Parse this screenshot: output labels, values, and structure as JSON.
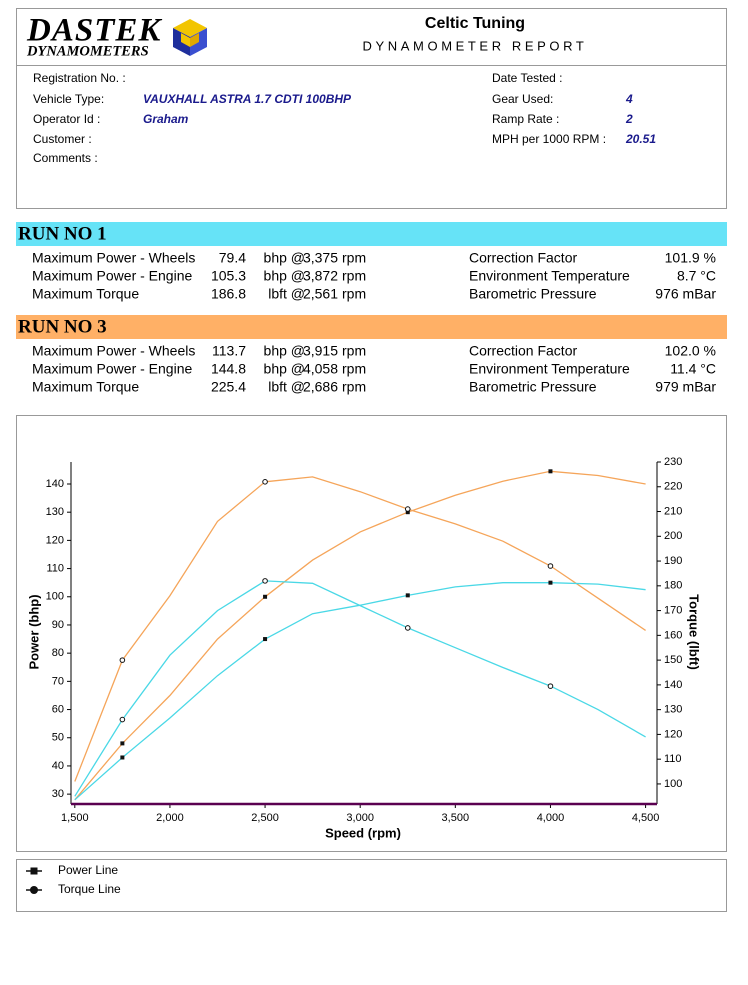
{
  "header": {
    "logo_line1": "DASTEK",
    "logo_line2": "DYNAMOMETERS",
    "company": "Celtic Tuning",
    "report_title": "DYNAMOMETER REPORT"
  },
  "vehicle": {
    "left": [
      {
        "label": "Registration No. :"
      },
      {
        "label": "Vehicle Type:",
        "value": "VAUXHALL ASTRA 1.7 CDTI 100BHP"
      },
      {
        "label": "Operator Id :",
        "value": "Graham"
      },
      {
        "label": "Customer :"
      },
      {
        "label": "Comments :"
      }
    ],
    "right": [
      {
        "label": "Date Tested :"
      },
      {
        "label": "Gear Used:",
        "value": "4"
      },
      {
        "label": "Ramp Rate :",
        "value": "2"
      },
      {
        "label": "MPH per 1000 RPM :",
        "value": "20.51"
      }
    ]
  },
  "runs": [
    {
      "title": "RUN NO 1",
      "color": "#66e3f7",
      "rows": [
        {
          "label": "Maximum Power - Wheels",
          "value": "79.4",
          "unit": "bhp @",
          "rpm": "3,375",
          "rpm_unit": "rpm"
        },
        {
          "label": "Maximum Power - Engine",
          "value": "105.3",
          "unit": "bhp @",
          "rpm": "3,872",
          "rpm_unit": "rpm"
        },
        {
          "label": "Maximum Torque",
          "value": "186.8",
          "unit": "lbft @",
          "rpm": "2,561",
          "rpm_unit": "rpm"
        }
      ],
      "env": [
        {
          "label": "Correction Factor",
          "value": "101.9 %"
        },
        {
          "label": "Environment Temperature",
          "value": "8.7 °C"
        },
        {
          "label": "Barometric Pressure",
          "value": "976 mBar"
        }
      ]
    },
    {
      "title": "RUN NO 3",
      "color": "#ffb066",
      "rows": [
        {
          "label": "Maximum Power - Wheels",
          "value": "113.7",
          "unit": "bhp @",
          "rpm": "3,915",
          "rpm_unit": "rpm"
        },
        {
          "label": "Maximum Power - Engine",
          "value": "144.8",
          "unit": "bhp @",
          "rpm": "4,058",
          "rpm_unit": "rpm"
        },
        {
          "label": "Maximum Torque",
          "value": "225.4",
          "unit": "lbft @",
          "rpm": "2,686",
          "rpm_unit": "rpm"
        }
      ],
      "env": [
        {
          "label": "Correction Factor",
          "value": "102.0 %"
        },
        {
          "label": "Environment Temperature",
          "value": "11.4 °C"
        },
        {
          "label": "Barometric Pressure",
          "value": "979 mBar"
        }
      ]
    }
  ],
  "chart_data": {
    "type": "line",
    "x_label": "Speed (rpm)",
    "y_label": "Power (bhp)",
    "y2_label": "Torque (lbft)",
    "x": [
      1500,
      1750,
      2000,
      2250,
      2500,
      2750,
      3000,
      3250,
      3500,
      3750,
      4000,
      4250,
      4500
    ],
    "series": [
      {
        "color": "#f5a55a",
        "axis": "y",
        "marker": "square",
        "values": [
          28,
          48,
          65,
          85,
          100,
          113,
          123,
          130,
          136,
          141,
          144.5,
          143,
          140
        ]
      },
      {
        "color": "#f5a55a",
        "axis": "y2",
        "marker": "circle",
        "values": [
          101,
          150,
          176,
          206,
          222,
          224,
          218,
          211,
          205,
          198,
          188,
          175,
          162
        ]
      },
      {
        "color": "#4ad8e6",
        "axis": "y",
        "marker": "square",
        "values": [
          28,
          43,
          57,
          72,
          85,
          94,
          97,
          100.5,
          103.5,
          105,
          105,
          104.5,
          102.5
        ]
      },
      {
        "color": "#4ad8e6",
        "axis": "y2",
        "marker": "circle",
        "values": [
          95,
          126,
          152,
          170,
          182,
          181,
          172,
          163,
          155,
          147,
          139.5,
          130,
          119
        ]
      }
    ],
    "xlim": [
      1480,
      4560
    ],
    "xticks": [
      {
        "value": 1500,
        "label": "1,500"
      },
      {
        "value": 2000,
        "label": "2,000"
      },
      {
        "value": 2500,
        "label": "2,500"
      },
      {
        "value": 3000,
        "label": "3,000"
      },
      {
        "value": 3500,
        "label": "3,500"
      },
      {
        "value": 4000,
        "label": "4,000"
      },
      {
        "value": 4500,
        "label": "4,500"
      }
    ],
    "ylim": [
      26.5,
      147.8
    ],
    "yticks": [
      30,
      40,
      50,
      60,
      70,
      80,
      90,
      100,
      110,
      120,
      130,
      140
    ],
    "y2lim": [
      91.9,
      230
    ],
    "y2ticks": [
      100,
      110,
      120,
      130,
      140,
      150,
      160,
      170,
      180,
      190,
      200,
      210,
      220,
      230
    ],
    "legend": [
      {
        "label": "Power Line",
        "marker": "square"
      },
      {
        "label": "Torque Line",
        "marker": "circle"
      }
    ]
  }
}
